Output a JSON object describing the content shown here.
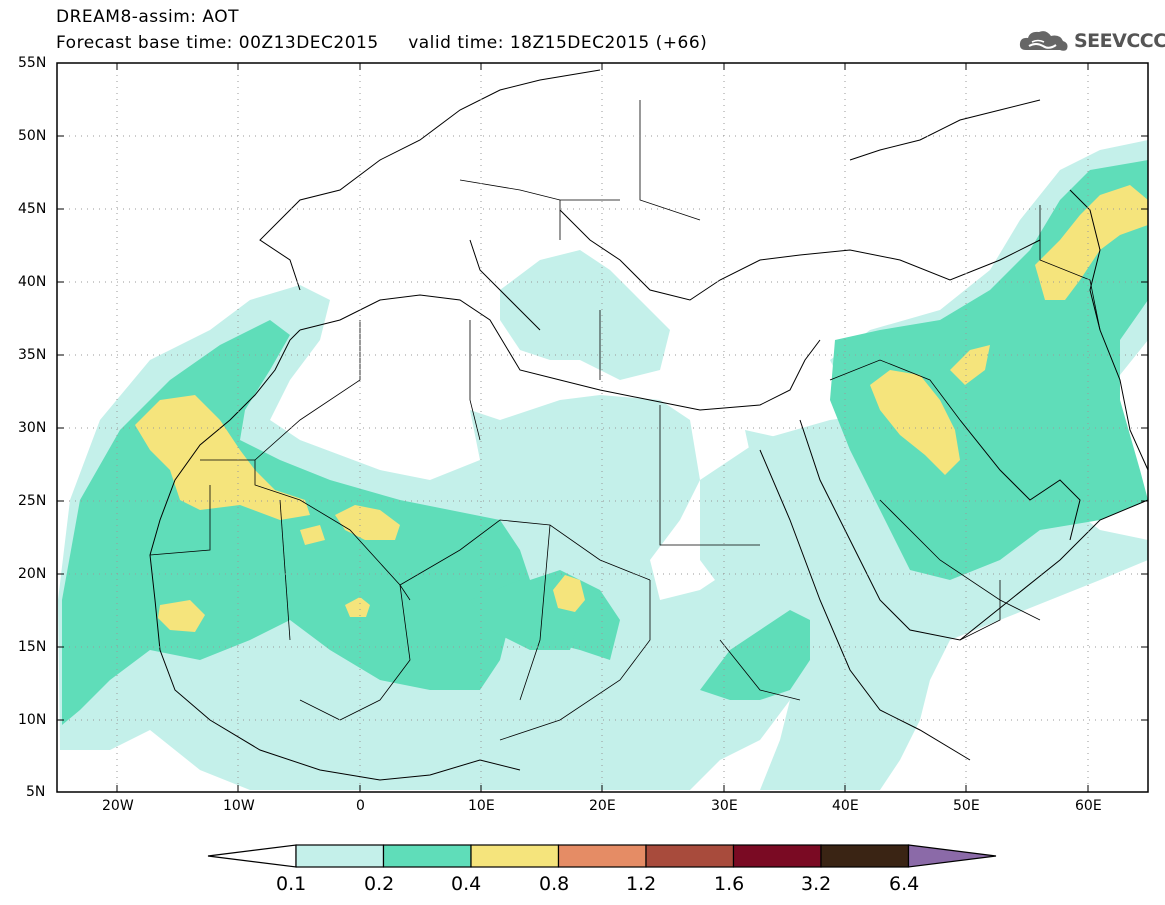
{
  "header": {
    "title_line1": "DREAM8-assim: AOT",
    "title_line2": "Forecast base time: 00Z13DEC2015     valid time: 18Z15DEC2015 (+66)"
  },
  "brand": {
    "logo_text": "SEEVCCC",
    "icon": "cloud-logo-icon"
  },
  "map": {
    "lat_labels": [
      "55N",
      "50N",
      "45N",
      "40N",
      "35N",
      "30N",
      "25N",
      "20N",
      "15N",
      "10N",
      "5N"
    ],
    "lon_labels": [
      "20W",
      "10W",
      "0",
      "10E",
      "20E",
      "30E",
      "40E",
      "50E",
      "60E"
    ],
    "extent": {
      "lon": [
        -25,
        65
      ],
      "lat": [
        5,
        55
      ]
    }
  },
  "colorbar": {
    "labels": [
      "0.1",
      "0.2",
      "0.4",
      "0.8",
      "1.2",
      "1.6",
      "3.2",
      "6.4"
    ],
    "colors": [
      "#ffffff",
      "#c4f0ea",
      "#5fddb9",
      "#f5e47c",
      "#e58c65",
      "#a84b3c",
      "#7a0a23",
      "#3a2414",
      "#8b6aa8"
    ]
  },
  "palette": {
    "light_cyan": "#c4f0ea",
    "teal": "#5fddb9",
    "yellow": "#f5e47c"
  }
}
